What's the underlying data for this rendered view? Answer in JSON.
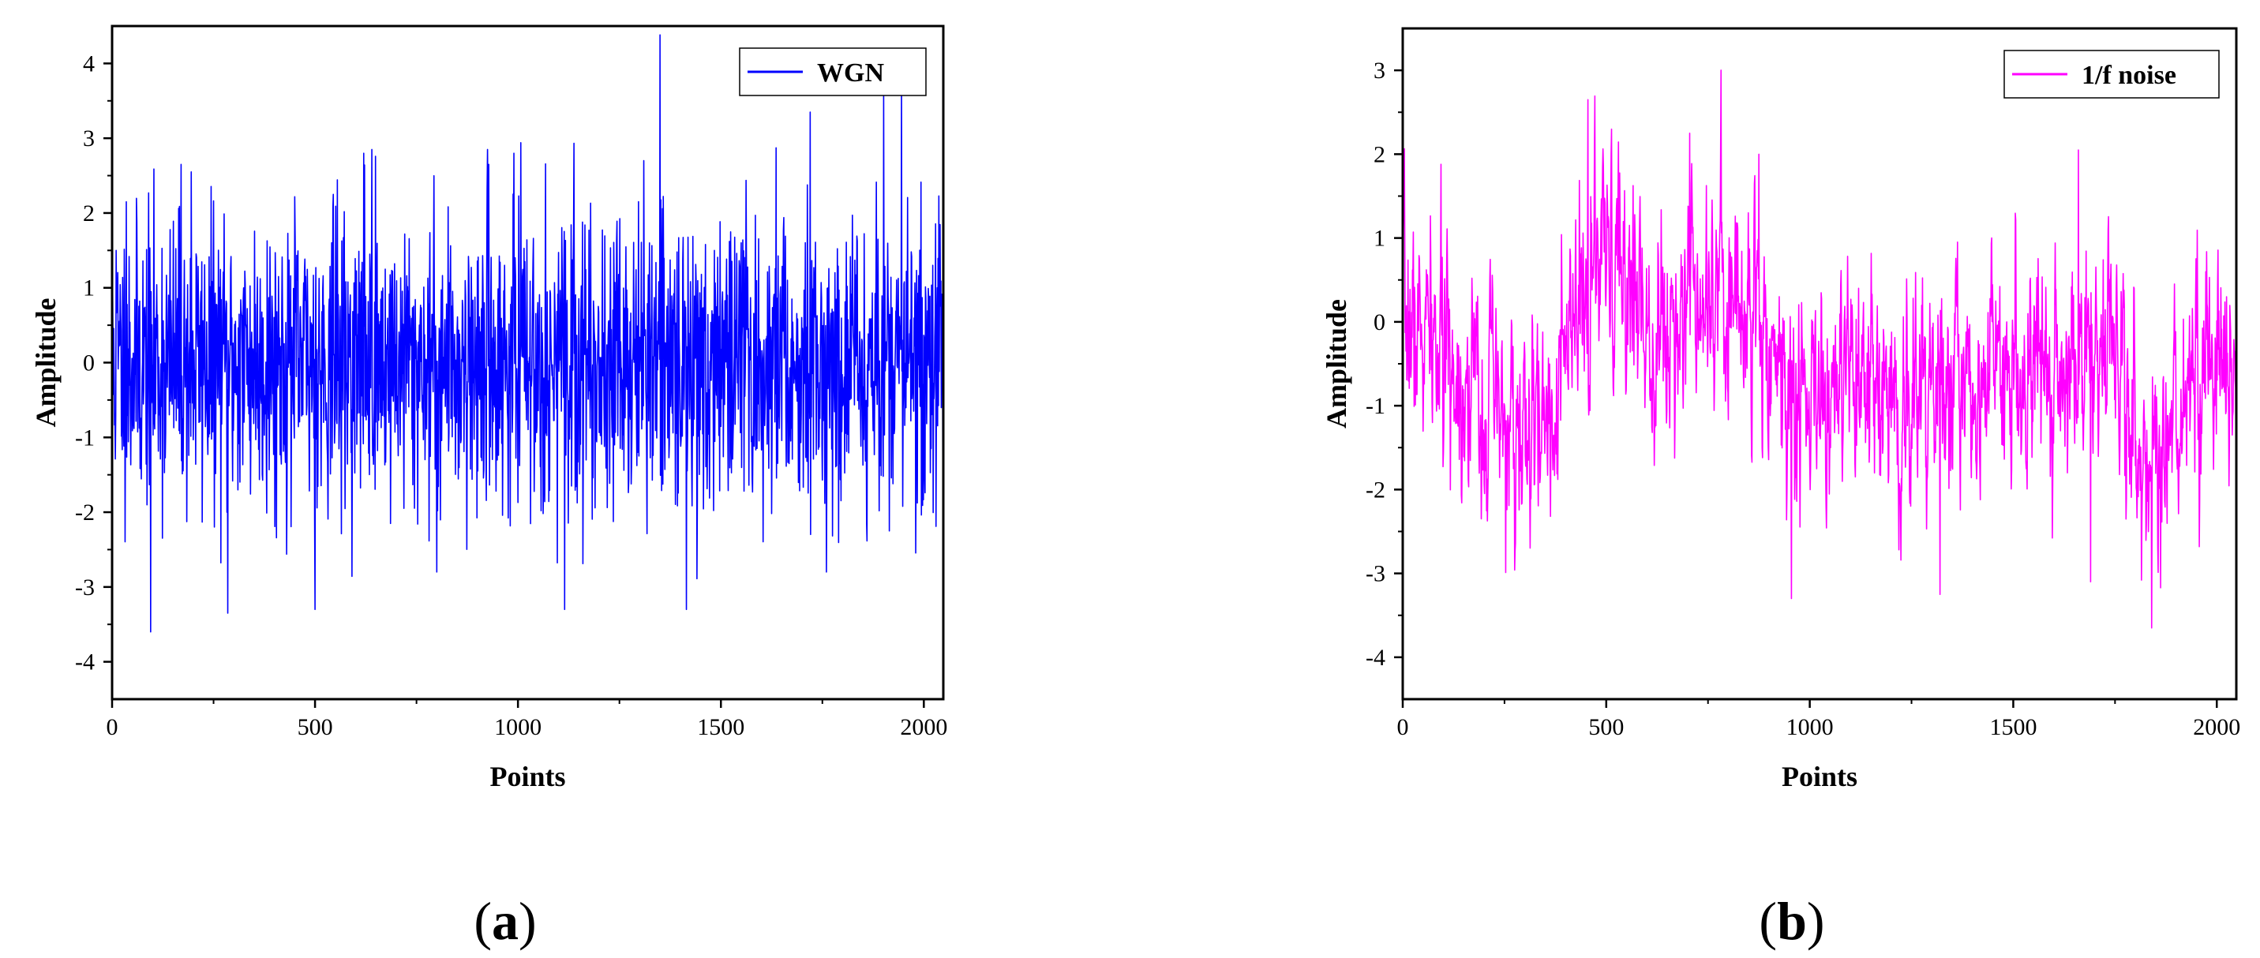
{
  "chart_data": [
    {
      "type": "line",
      "panel_label": "a",
      "xlabel": "Points",
      "ylabel": "Amplitude",
      "xlim": [
        0,
        2048
      ],
      "ylim": [
        -4.5,
        4.5
      ],
      "xticks": [
        "0",
        "500",
        "1000",
        "1500",
        "2000"
      ],
      "yticks": [
        "-4",
        "-3",
        "-2",
        "-1",
        "0",
        "1",
        "2",
        "3",
        "4"
      ],
      "legend_position": "top-right",
      "series": [
        {
          "name": "WGN",
          "color": "#0000ff",
          "n_points": 2048,
          "mean": 0,
          "std": 0.95,
          "generator": "white",
          "seed": 11,
          "peaks": [
            [
              10,
              1.5
            ],
            [
              35,
              2.15
            ],
            [
              95,
              -3.6
            ],
            [
              170,
              2.65
            ],
            [
              195,
              2.55
            ],
            [
              285,
              -3.35
            ],
            [
              500,
              -3.3
            ],
            [
              545,
              2.25
            ],
            [
              620,
              2.8
            ],
            [
              640,
              2.85
            ],
            [
              800,
              -2.8
            ],
            [
              925,
              2.85
            ],
            [
              990,
              2.8
            ],
            [
              1115,
              -3.3
            ],
            [
              1310,
              2.7
            ],
            [
              1415,
              -3.3
            ],
            [
              1720,
              3.35
            ],
            [
              1760,
              -2.8
            ],
            [
              1945,
              3.75
            ]
          ]
        }
      ]
    },
    {
      "type": "line",
      "panel_label": "b",
      "xlabel": "Points",
      "ylabel": "Amplitude",
      "xlim": [
        0,
        2048
      ],
      "ylim": [
        -4.5,
        3.5
      ],
      "xticks": [
        "0",
        "500",
        "1000",
        "1500",
        "2000"
      ],
      "yticks": [
        "-4",
        "-3",
        "-2",
        "-1",
        "0",
        "1",
        "2",
        "3"
      ],
      "legend_position": "top-right",
      "series": [
        {
          "name": "1/f noise",
          "color": "#ff00ff",
          "n_points": 2048,
          "generator": "pink",
          "seed": 7,
          "trend": [
            [
              0,
              0.0
            ],
            [
              100,
              -0.4
            ],
            [
              200,
              -0.9
            ],
            [
              300,
              -1.6
            ],
            [
              400,
              -0.6
            ],
            [
              470,
              0.6
            ],
            [
              560,
              0.5
            ],
            [
              640,
              -0.2
            ],
            [
              720,
              0.7
            ],
            [
              800,
              0.3
            ],
            [
              880,
              0.1
            ],
            [
              960,
              -1.0
            ],
            [
              1100,
              -0.9
            ],
            [
              1250,
              -1.0
            ],
            [
              1400,
              -0.6
            ],
            [
              1550,
              -0.4
            ],
            [
              1650,
              -0.6
            ],
            [
              1750,
              -0.3
            ],
            [
              1830,
              -1.9
            ],
            [
              1900,
              -1.0
            ],
            [
              2000,
              -0.4
            ],
            [
              2047,
              -0.9
            ]
          ],
          "peaks": [
            [
              455,
              2.65
            ],
            [
              705,
              2.25
            ],
            [
              875,
              2.0
            ],
            [
              955,
              -3.3
            ],
            [
              1320,
              -3.25
            ],
            [
              1660,
              2.05
            ],
            [
              1690,
              -3.1
            ],
            [
              1840,
              -3.65
            ]
          ]
        }
      ]
    }
  ]
}
